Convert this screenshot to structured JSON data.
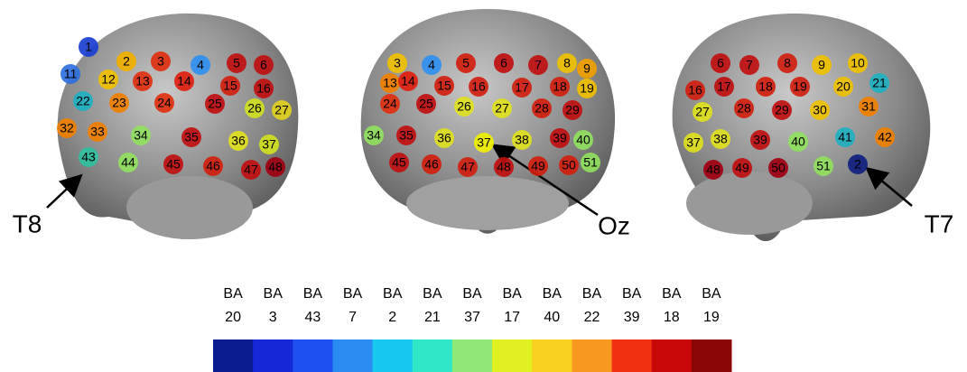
{
  "views": [
    {
      "callout": "T8",
      "electrodes": [
        {
          "label": "1",
          "color": "#1a3fd0"
        },
        {
          "label": "2",
          "color": "#f0b000"
        },
        {
          "label": "3",
          "color": "#e03010"
        },
        {
          "label": "4",
          "color": "#3090f0"
        },
        {
          "label": "5",
          "color": "#c01010"
        },
        {
          "label": "6",
          "color": "#c01010"
        },
        {
          "label": "11",
          "color": "#3070e0"
        },
        {
          "label": "12",
          "color": "#f0c000"
        },
        {
          "label": "13",
          "color": "#e03010"
        },
        {
          "label": "14",
          "color": "#e02010"
        },
        {
          "label": "15",
          "color": "#d02010"
        },
        {
          "label": "16",
          "color": "#c01010"
        },
        {
          "label": "22",
          "color": "#20b0c0"
        },
        {
          "label": "23",
          "color": "#f08000"
        },
        {
          "label": "24",
          "color": "#e03010"
        },
        {
          "label": "25",
          "color": "#c01010"
        },
        {
          "label": "26",
          "color": "#d0e020"
        },
        {
          "label": "27",
          "color": "#e0d020"
        },
        {
          "label": "32",
          "color": "#f08000"
        },
        {
          "label": "33",
          "color": "#f08000"
        },
        {
          "label": "34",
          "color": "#90e060"
        },
        {
          "label": "35",
          "color": "#c01010"
        },
        {
          "label": "36",
          "color": "#e0e020"
        },
        {
          "label": "37",
          "color": "#d0e020"
        },
        {
          "label": "43",
          "color": "#30c0a0"
        },
        {
          "label": "44",
          "color": "#90e060"
        },
        {
          "label": "45",
          "color": "#c01010"
        },
        {
          "label": "46",
          "color": "#d02010"
        },
        {
          "label": "47",
          "color": "#c01010"
        },
        {
          "label": "48",
          "color": "#a00010"
        }
      ]
    },
    {
      "callout": "Oz",
      "electrodes": [
        {
          "label": "3",
          "color": "#f0c000"
        },
        {
          "label": "4",
          "color": "#3090f0"
        },
        {
          "label": "5",
          "color": "#d02010"
        },
        {
          "label": "6",
          "color": "#c01010"
        },
        {
          "label": "7",
          "color": "#c01010"
        },
        {
          "label": "8",
          "color": "#f0c000"
        },
        {
          "label": "9",
          "color": "#f0a000"
        },
        {
          "label": "13",
          "color": "#f08000"
        },
        {
          "label": "14",
          "color": "#e02010"
        },
        {
          "label": "15",
          "color": "#d02010"
        },
        {
          "label": "16",
          "color": "#d02010"
        },
        {
          "label": "17",
          "color": "#d02010"
        },
        {
          "label": "18",
          "color": "#d02010"
        },
        {
          "label": "19",
          "color": "#f0c000"
        },
        {
          "label": "24",
          "color": "#e03010"
        },
        {
          "label": "25",
          "color": "#c01010"
        },
        {
          "label": "26",
          "color": "#e0e020"
        },
        {
          "label": "27",
          "color": "#e0e020"
        },
        {
          "label": "28",
          "color": "#d02010"
        },
        {
          "label": "29",
          "color": "#c01010"
        },
        {
          "label": "34",
          "color": "#90e060"
        },
        {
          "label": "35",
          "color": "#c01010"
        },
        {
          "label": "36",
          "color": "#e0e020"
        },
        {
          "label": "37",
          "color": "#f0f000"
        },
        {
          "label": "38",
          "color": "#e0e020"
        },
        {
          "label": "39",
          "color": "#c01010"
        },
        {
          "label": "40",
          "color": "#90e060"
        },
        {
          "label": "45",
          "color": "#c01010"
        },
        {
          "label": "46",
          "color": "#d02010"
        },
        {
          "label": "47",
          "color": "#d02010"
        },
        {
          "label": "48",
          "color": "#c01010"
        },
        {
          "label": "49",
          "color": "#d02010"
        },
        {
          "label": "50",
          "color": "#d02010"
        },
        {
          "label": "51",
          "color": "#90e060"
        }
      ]
    },
    {
      "callout": "T7",
      "electrodes": [
        {
          "label": "6",
          "color": "#c01010"
        },
        {
          "label": "7",
          "color": "#c01010"
        },
        {
          "label": "8",
          "color": "#d02010"
        },
        {
          "label": "9",
          "color": "#f0c000"
        },
        {
          "label": "10",
          "color": "#f0c000"
        },
        {
          "label": "16",
          "color": "#d02010"
        },
        {
          "label": "17",
          "color": "#c01010"
        },
        {
          "label": "18",
          "color": "#d02010"
        },
        {
          "label": "19",
          "color": "#d02010"
        },
        {
          "label": "20",
          "color": "#f0c000"
        },
        {
          "label": "21",
          "color": "#20b0c0"
        },
        {
          "label": "27",
          "color": "#e0e020"
        },
        {
          "label": "28",
          "color": "#d02010"
        },
        {
          "label": "29",
          "color": "#c01010"
        },
        {
          "label": "30",
          "color": "#f0c000"
        },
        {
          "label": "31",
          "color": "#f08000"
        },
        {
          "label": "37",
          "color": "#e0e020"
        },
        {
          "label": "38",
          "color": "#e0e020"
        },
        {
          "label": "39",
          "color": "#c01010"
        },
        {
          "label": "40",
          "color": "#90e060"
        },
        {
          "label": "41",
          "color": "#20b0c0"
        },
        {
          "label": "42",
          "color": "#f08000"
        },
        {
          "label": "48",
          "color": "#a00010"
        },
        {
          "label": "49",
          "color": "#c01010"
        },
        {
          "label": "50",
          "color": "#a00010"
        },
        {
          "label": "51",
          "color": "#90e060"
        },
        {
          "label": "2",
          "color": "#102080"
        }
      ]
    }
  ],
  "legend": [
    {
      "line1": "BA",
      "line2": "20",
      "color": "#0a1a8f"
    },
    {
      "line1": "BA",
      "line2": "3",
      "color": "#1428d8"
    },
    {
      "line1": "BA",
      "line2": "43",
      "color": "#1e4ff0"
    },
    {
      "line1": "BA",
      "line2": "7",
      "color": "#2a8cf0"
    },
    {
      "line1": "BA",
      "line2": "2",
      "color": "#18c8f0"
    },
    {
      "line1": "BA",
      "line2": "21",
      "color": "#30e8c8"
    },
    {
      "line1": "BA",
      "line2": "37",
      "color": "#90e878"
    },
    {
      "line1": "BA",
      "line2": "17",
      "color": "#e0f020"
    },
    {
      "line1": "BA",
      "line2": "40",
      "color": "#f8d020"
    },
    {
      "line1": "BA",
      "line2": "22",
      "color": "#f89820"
    },
    {
      "line1": "BA",
      "line2": "39",
      "color": "#f03010"
    },
    {
      "line1": "BA",
      "line2": "18",
      "color": "#c80808"
    },
    {
      "line1": "BA",
      "line2": "19",
      "color": "#8a0606"
    }
  ]
}
